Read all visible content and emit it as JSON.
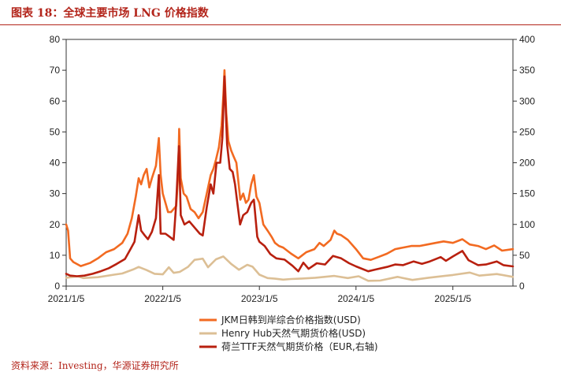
{
  "figure_title": "图表 18：全球主要市场 LNG 价格指数",
  "source_note": "资料来源：Investing，华源证券研究所",
  "chart_data": {
    "type": "line",
    "x_axis": {
      "type": "date",
      "range": [
        "2021-01-05",
        "2025-08-20"
      ],
      "tick_labels": [
        "2021/1/5",
        "2022/1/5",
        "2023/1/5",
        "2024/1/5",
        "2025/1/5"
      ],
      "tick_dates": [
        "2021-01-05",
        "2022-01-05",
        "2023-01-05",
        "2024-01-05",
        "2025-01-05"
      ]
    },
    "y_left": {
      "ylim": [
        0,
        80
      ],
      "ticks": [
        "0",
        "10",
        "20",
        "30",
        "40",
        "50",
        "60",
        "70",
        "80"
      ]
    },
    "y_right": {
      "ylim": [
        0,
        400
      ],
      "ticks": [
        "0",
        "50",
        "100",
        "150",
        "200",
        "250",
        "300",
        "350",
        "400"
      ]
    },
    "grid": false,
    "legend": {
      "position": "bottom"
    },
    "series": [
      {
        "name": "JKM日韩到岸综合价格指数(USD)",
        "axis": "left",
        "color": "#f26a21",
        "points": [
          [
            "2021-01-05",
            20
          ],
          [
            "2021-01-12",
            18
          ],
          [
            "2021-01-20",
            9
          ],
          [
            "2021-02-01",
            7.8
          ],
          [
            "2021-03-01",
            6.5
          ],
          [
            "2021-04-05",
            7.5
          ],
          [
            "2021-05-05",
            9
          ],
          [
            "2021-06-05",
            11
          ],
          [
            "2021-07-05",
            12
          ],
          [
            "2021-08-05",
            14
          ],
          [
            "2021-08-25",
            17
          ],
          [
            "2021-09-10",
            22
          ],
          [
            "2021-09-25",
            29
          ],
          [
            "2021-10-06",
            35
          ],
          [
            "2021-10-15",
            33
          ],
          [
            "2021-10-25",
            36
          ],
          [
            "2021-11-05",
            38
          ],
          [
            "2021-11-15",
            32
          ],
          [
            "2021-11-25",
            35
          ],
          [
            "2021-12-10",
            39
          ],
          [
            "2021-12-21",
            48
          ],
          [
            "2021-12-28",
            36
          ],
          [
            "2022-01-05",
            30
          ],
          [
            "2022-01-15",
            27
          ],
          [
            "2022-01-25",
            24
          ],
          [
            "2022-02-05",
            24
          ],
          [
            "2022-02-15",
            25
          ],
          [
            "2022-02-25",
            26
          ],
          [
            "2022-03-04",
            36
          ],
          [
            "2022-03-08",
            51
          ],
          [
            "2022-03-14",
            35
          ],
          [
            "2022-03-25",
            30
          ],
          [
            "2022-04-05",
            29
          ],
          [
            "2022-04-20",
            25
          ],
          [
            "2022-05-05",
            24
          ],
          [
            "2022-05-20",
            22
          ],
          [
            "2022-06-05",
            24
          ],
          [
            "2022-06-20",
            30
          ],
          [
            "2022-07-05",
            36
          ],
          [
            "2022-07-15",
            38
          ],
          [
            "2022-07-25",
            41
          ],
          [
            "2022-08-05",
            45
          ],
          [
            "2022-08-15",
            52
          ],
          [
            "2022-08-22",
            62
          ],
          [
            "2022-08-26",
            70
          ],
          [
            "2022-09-02",
            56
          ],
          [
            "2022-09-10",
            47
          ],
          [
            "2022-09-20",
            44
          ],
          [
            "2022-09-30",
            42
          ],
          [
            "2022-10-10",
            40
          ],
          [
            "2022-10-20",
            32
          ],
          [
            "2022-10-25",
            28
          ],
          [
            "2022-11-05",
            30
          ],
          [
            "2022-11-15",
            27
          ],
          [
            "2022-11-25",
            28
          ],
          [
            "2022-12-05",
            33
          ],
          [
            "2022-12-15",
            36
          ],
          [
            "2022-12-25",
            29
          ],
          [
            "2023-01-05",
            27
          ],
          [
            "2023-01-20",
            20
          ],
          [
            "2023-02-05",
            18
          ],
          [
            "2023-02-20",
            16
          ],
          [
            "2023-03-05",
            14
          ],
          [
            "2023-03-20",
            13
          ],
          [
            "2023-04-05",
            12.5
          ],
          [
            "2023-05-05",
            10.5
          ],
          [
            "2023-06-01",
            9
          ],
          [
            "2023-07-01",
            11
          ],
          [
            "2023-08-01",
            12
          ],
          [
            "2023-08-20",
            14
          ],
          [
            "2023-09-05",
            13
          ],
          [
            "2023-10-01",
            15
          ],
          [
            "2023-10-15",
            18
          ],
          [
            "2023-10-25",
            17
          ],
          [
            "2023-11-10",
            16.5
          ],
          [
            "2023-12-05",
            15
          ],
          [
            "2024-01-05",
            12
          ],
          [
            "2024-02-01",
            9
          ],
          [
            "2024-03-01",
            8.5
          ],
          [
            "2024-04-01",
            9.5
          ],
          [
            "2024-05-01",
            10.5
          ],
          [
            "2024-06-01",
            12
          ],
          [
            "2024-07-01",
            12.5
          ],
          [
            "2024-08-01",
            13
          ],
          [
            "2024-09-01",
            13
          ],
          [
            "2024-10-01",
            13.5
          ],
          [
            "2024-11-01",
            14
          ],
          [
            "2024-12-01",
            14.5
          ],
          [
            "2025-01-05",
            14
          ],
          [
            "2025-02-10",
            15.2
          ],
          [
            "2025-03-10",
            13.5
          ],
          [
            "2025-04-10",
            13
          ],
          [
            "2025-05-10",
            12
          ],
          [
            "2025-06-10",
            13.2
          ],
          [
            "2025-07-10",
            11.5
          ],
          [
            "2025-08-20",
            12
          ]
        ]
      },
      {
        "name": "Henry Hub天然气期货价格(USD)",
        "axis": "left",
        "color": "#dcbf95",
        "points": [
          [
            "2021-01-05",
            2.7
          ],
          [
            "2021-02-18",
            3.2
          ],
          [
            "2021-03-10",
            2.6
          ],
          [
            "2021-05-05",
            2.9
          ],
          [
            "2021-07-05",
            3.7
          ],
          [
            "2021-08-05",
            4.1
          ],
          [
            "2021-09-15",
            5.4
          ],
          [
            "2021-10-06",
            6.2
          ],
          [
            "2021-11-05",
            5.2
          ],
          [
            "2021-12-05",
            4.0
          ],
          [
            "2022-01-05",
            3.8
          ],
          [
            "2022-01-28",
            6.1
          ],
          [
            "2022-02-15",
            4.3
          ],
          [
            "2022-03-10",
            4.6
          ],
          [
            "2022-04-10",
            6.2
          ],
          [
            "2022-05-05",
            8.5
          ],
          [
            "2022-06-05",
            8.9
          ],
          [
            "2022-06-25",
            6.1
          ],
          [
            "2022-07-25",
            8.7
          ],
          [
            "2022-08-22",
            9.6
          ],
          [
            "2022-09-20",
            7.2
          ],
          [
            "2022-10-20",
            5.3
          ],
          [
            "2022-11-20",
            6.9
          ],
          [
            "2022-12-10",
            6.3
          ],
          [
            "2023-01-05",
            3.7
          ],
          [
            "2023-02-05",
            2.6
          ],
          [
            "2023-03-05",
            2.4
          ],
          [
            "2023-04-05",
            2.1
          ],
          [
            "2023-05-05",
            2.3
          ],
          [
            "2023-06-05",
            2.4
          ],
          [
            "2023-08-05",
            2.7
          ],
          [
            "2023-10-15",
            3.3
          ],
          [
            "2023-12-05",
            2.6
          ],
          [
            "2024-01-15",
            3.2
          ],
          [
            "2024-02-20",
            1.7
          ],
          [
            "2024-04-05",
            1.8
          ],
          [
            "2024-06-10",
            3.0
          ],
          [
            "2024-08-05",
            2.0
          ],
          [
            "2024-10-05",
            2.7
          ],
          [
            "2024-12-05",
            3.3
          ],
          [
            "2025-01-05",
            3.6
          ],
          [
            "2025-03-10",
            4.4
          ],
          [
            "2025-04-15",
            3.4
          ],
          [
            "2025-06-20",
            3.9
          ],
          [
            "2025-08-20",
            3.0
          ]
        ]
      },
      {
        "name": "荷兰TTF天然气期货价格（EUR,右轴)",
        "axis": "right",
        "color": "#b8200f",
        "points": [
          [
            "2021-01-05",
            20
          ],
          [
            "2021-01-20",
            17
          ],
          [
            "2021-02-15",
            16
          ],
          [
            "2021-03-15",
            17
          ],
          [
            "2021-04-15",
            20
          ],
          [
            "2021-05-15",
            24
          ],
          [
            "2021-06-15",
            29
          ],
          [
            "2021-07-15",
            36
          ],
          [
            "2021-08-15",
            44
          ],
          [
            "2021-09-05",
            60
          ],
          [
            "2021-09-20",
            72
          ],
          [
            "2021-10-06",
            115
          ],
          [
            "2021-10-15",
            90
          ],
          [
            "2021-10-29",
            82
          ],
          [
            "2021-11-10",
            76
          ],
          [
            "2021-11-25",
            88
          ],
          [
            "2021-12-10",
            110
          ],
          [
            "2021-12-21",
            180
          ],
          [
            "2021-12-28",
            85
          ],
          [
            "2022-01-15",
            85
          ],
          [
            "2022-01-31",
            80
          ],
          [
            "2022-02-15",
            75
          ],
          [
            "2022-02-24",
            130
          ],
          [
            "2022-03-07",
            227
          ],
          [
            "2022-03-14",
            115
          ],
          [
            "2022-03-28",
            100
          ],
          [
            "2022-04-15",
            105
          ],
          [
            "2022-05-05",
            95
          ],
          [
            "2022-05-25",
            85
          ],
          [
            "2022-06-05",
            82
          ],
          [
            "2022-06-20",
            128
          ],
          [
            "2022-07-05",
            165
          ],
          [
            "2022-07-15",
            150
          ],
          [
            "2022-07-27",
            200
          ],
          [
            "2022-08-10",
            200
          ],
          [
            "2022-08-18",
            240
          ],
          [
            "2022-08-26",
            340
          ],
          [
            "2022-09-05",
            230
          ],
          [
            "2022-09-15",
            190
          ],
          [
            "2022-09-26",
            185
          ],
          [
            "2022-10-05",
            165
          ],
          [
            "2022-10-12",
            140
          ],
          [
            "2022-10-24",
            100
          ],
          [
            "2022-11-05",
            115
          ],
          [
            "2022-11-20",
            120
          ],
          [
            "2022-12-05",
            135
          ],
          [
            "2022-12-15",
            140
          ],
          [
            "2022-12-28",
            80
          ],
          [
            "2023-01-05",
            72
          ],
          [
            "2023-01-25",
            65
          ],
          [
            "2023-02-15",
            52
          ],
          [
            "2023-03-10",
            45
          ],
          [
            "2023-04-10",
            43
          ],
          [
            "2023-05-10",
            33
          ],
          [
            "2023-06-01",
            24
          ],
          [
            "2023-06-20",
            38
          ],
          [
            "2023-07-10",
            28
          ],
          [
            "2023-08-10",
            37
          ],
          [
            "2023-09-10",
            35
          ],
          [
            "2023-10-10",
            49
          ],
          [
            "2023-11-10",
            45
          ],
          [
            "2023-12-10",
            37
          ],
          [
            "2024-01-05",
            32
          ],
          [
            "2024-02-20",
            24
          ],
          [
            "2024-03-20",
            27
          ],
          [
            "2024-05-01",
            31
          ],
          [
            "2024-06-01",
            35
          ],
          [
            "2024-07-01",
            34
          ],
          [
            "2024-08-10",
            40
          ],
          [
            "2024-09-10",
            36
          ],
          [
            "2024-10-10",
            40
          ],
          [
            "2024-11-20",
            47
          ],
          [
            "2024-12-10",
            41
          ],
          [
            "2025-01-05",
            48
          ],
          [
            "2025-02-10",
            57
          ],
          [
            "2025-03-05",
            42
          ],
          [
            "2025-04-10",
            34
          ],
          [
            "2025-05-10",
            35
          ],
          [
            "2025-06-20",
            40
          ],
          [
            "2025-07-15",
            34
          ],
          [
            "2025-08-20",
            32
          ]
        ]
      }
    ]
  }
}
